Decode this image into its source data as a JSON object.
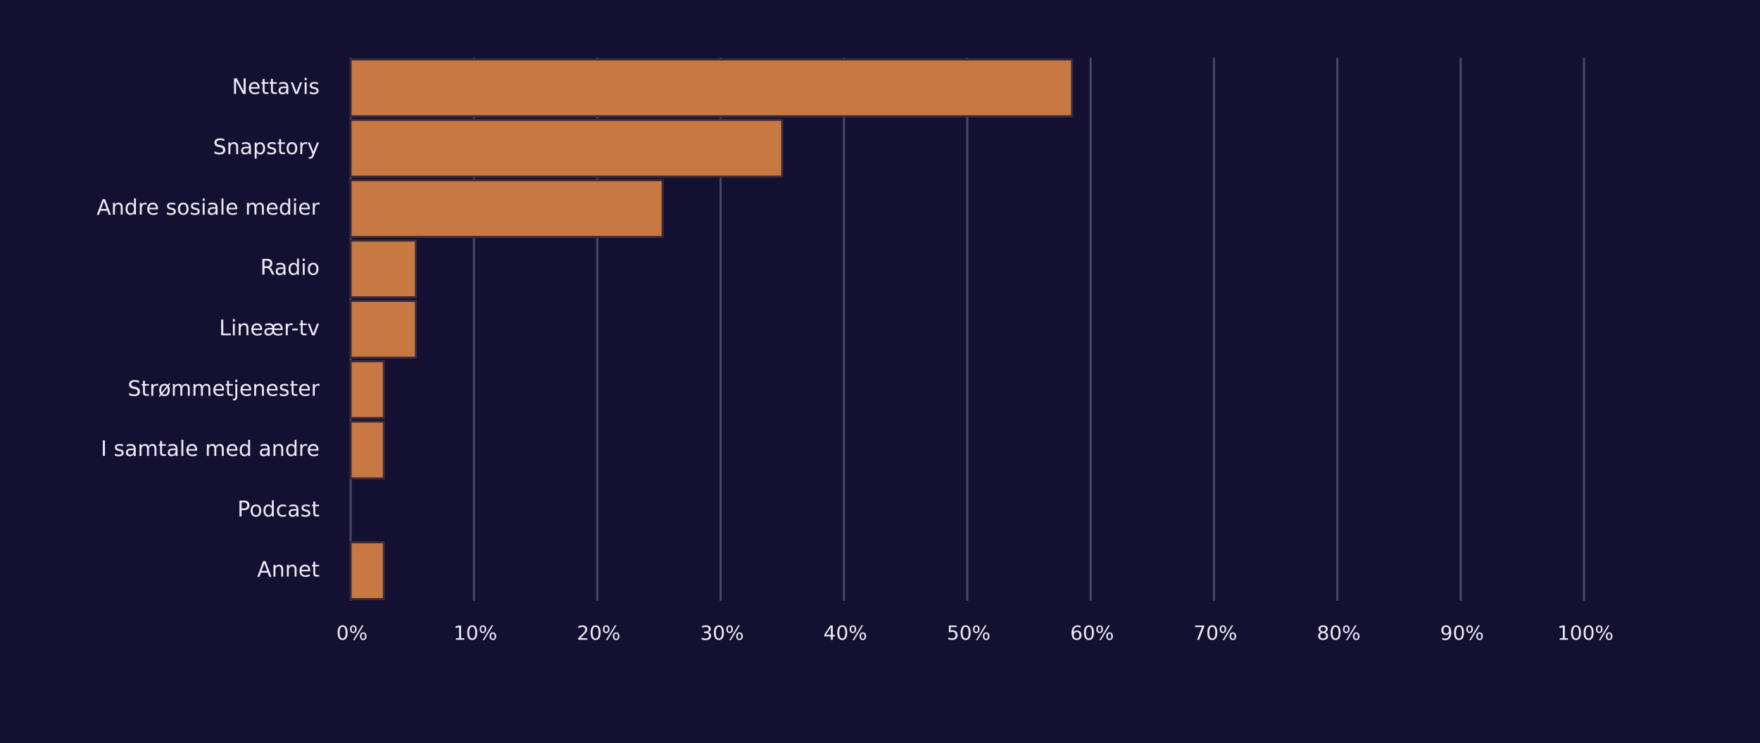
{
  "chart_data": {
    "type": "bar",
    "orientation": "horizontal",
    "title": "",
    "xlabel": "",
    "ylabel": "",
    "categories": [
      "Nettavis",
      "Snapstory",
      "Andre sosiale medier",
      "Radio",
      "Lineær-tv",
      "Strømmetjenester",
      "I samtale med andre",
      "Podcast",
      "Annet"
    ],
    "values": [
      58.5,
      35,
      25.3,
      5.3,
      5.3,
      2.7,
      2.7,
      0,
      2.7
    ],
    "xlim": [
      0,
      100
    ],
    "x_ticks": [
      "0%",
      "10%",
      "20%",
      "30%",
      "40%",
      "50%",
      "60%",
      "70%",
      "80%",
      "90%",
      "100%"
    ],
    "x_tick_values": [
      0,
      10,
      20,
      30,
      40,
      50,
      60,
      70,
      80,
      90,
      100
    ],
    "grid": "vertical",
    "legend": "none",
    "colors": {
      "background": "#141031",
      "bar": "#c87941",
      "gridline": "#4a4763",
      "text": "#ece9f4"
    }
  }
}
